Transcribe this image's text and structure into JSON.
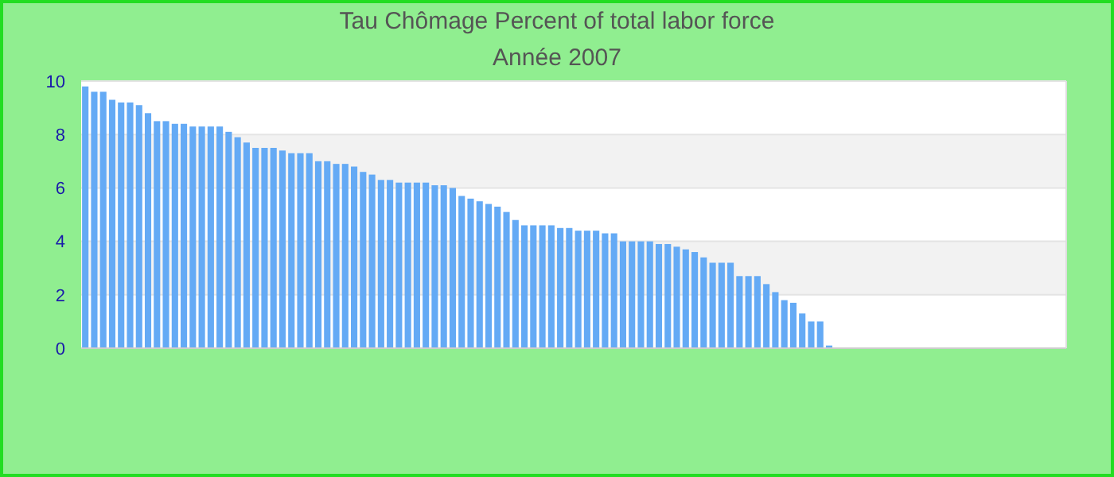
{
  "chart_data": {
    "type": "bar",
    "title": "Tau Chômage  Percent of total labor force",
    "subtitle": "Année 2007",
    "categories": [
      null,
      null,
      null,
      null,
      null,
      null,
      null,
      null,
      null,
      null,
      null,
      null,
      null,
      null,
      null,
      null,
      null,
      null,
      null,
      null,
      null,
      null,
      null,
      null,
      null,
      null,
      null,
      null,
      null,
      null,
      null,
      null,
      null,
      null,
      null,
      null,
      null,
      null,
      null,
      null,
      null,
      null,
      null,
      null,
      null,
      null,
      null,
      null,
      null,
      null,
      null,
      null,
      null,
      null,
      null,
      null,
      null,
      null,
      null,
      null,
      null,
      null,
      null,
      null,
      null,
      null,
      null,
      null,
      null,
      null,
      null,
      null,
      null,
      null,
      null,
      null,
      null,
      null,
      null,
      null,
      null,
      null,
      null,
      null,
      null,
      null,
      null,
      null,
      null,
      null,
      null,
      null,
      null,
      null,
      null,
      null,
      null,
      null,
      null,
      null,
      null,
      null,
      null,
      null,
      null,
      null,
      null,
      null,
      null,
      null
    ],
    "values": [
      9.8,
      9.6,
      9.6,
      9.3,
      9.2,
      9.2,
      9.1,
      8.8,
      8.5,
      8.5,
      8.4,
      8.4,
      8.3,
      8.3,
      8.3,
      8.3,
      8.1,
      7.9,
      7.7,
      7.5,
      7.5,
      7.5,
      7.4,
      7.3,
      7.3,
      7.3,
      7.0,
      7.0,
      6.9,
      6.9,
      6.8,
      6.6,
      6.5,
      6.3,
      6.3,
      6.2,
      6.2,
      6.2,
      6.2,
      6.1,
      6.1,
      6.0,
      5.7,
      5.6,
      5.5,
      5.4,
      5.3,
      5.1,
      4.8,
      4.6,
      4.6,
      4.6,
      4.6,
      4.5,
      4.5,
      4.4,
      4.4,
      4.4,
      4.3,
      4.3,
      4.0,
      4.0,
      4.0,
      4.0,
      3.9,
      3.9,
      3.8,
      3.7,
      3.6,
      3.4,
      3.2,
      3.2,
      3.2,
      2.7,
      2.7,
      2.7,
      2.4,
      2.1,
      1.8,
      1.7,
      1.3,
      1.0,
      1.0,
      0.1,
      null,
      null,
      null,
      null,
      null,
      null,
      null,
      null,
      null,
      null,
      null,
      null,
      null,
      null,
      null,
      null,
      null,
      null,
      null,
      null,
      null,
      null,
      null,
      null,
      null,
      null
    ],
    "color": "#64aaf5",
    "ylim": [
      0,
      10
    ],
    "yticks": [
      0,
      2,
      4,
      6,
      8,
      10
    ],
    "grid": "y"
  }
}
